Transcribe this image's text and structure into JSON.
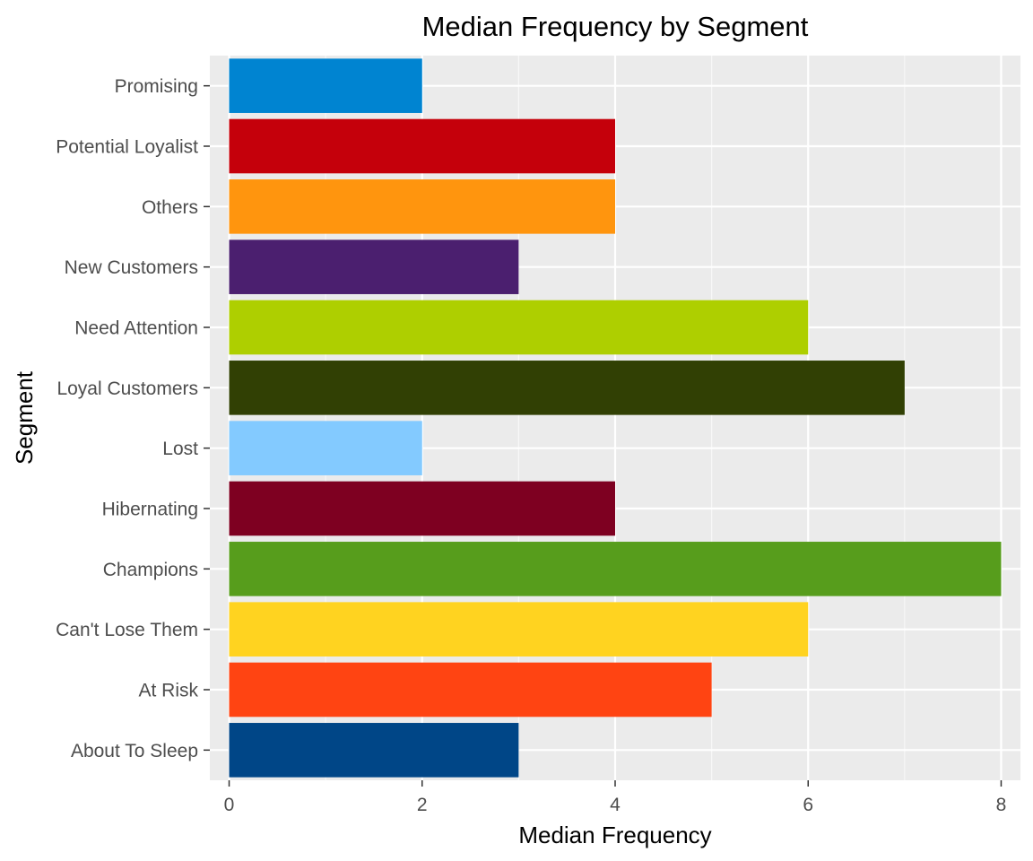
{
  "chart_data": {
    "type": "bar",
    "orientation": "horizontal",
    "title": "Median Frequency by Segment",
    "xlabel": "Median Frequency",
    "ylabel": "Segment",
    "xlim": [
      -0.2,
      8.2
    ],
    "x_ticks": [
      0,
      2,
      4,
      6,
      8
    ],
    "grid": true,
    "legend": "none",
    "categories": [
      "About To Sleep",
      "At Risk",
      "Can't Lose Them",
      "Champions",
      "Hibernating",
      "Lost",
      "Loyal Customers",
      "Need Attention",
      "New Customers",
      "Others",
      "Potential Loyalist",
      "Promising"
    ],
    "values": [
      3,
      5,
      6,
      8,
      4,
      2,
      7,
      6,
      3,
      4,
      4,
      2
    ],
    "colors": [
      "#004687",
      "#FF4412",
      "#FFD320",
      "#579D1C",
      "#7E0021",
      "#83CAFF",
      "#314004",
      "#AECF00",
      "#4B1F6F",
      "#FF950E",
      "#C5000B",
      "#0084D1"
    ]
  }
}
